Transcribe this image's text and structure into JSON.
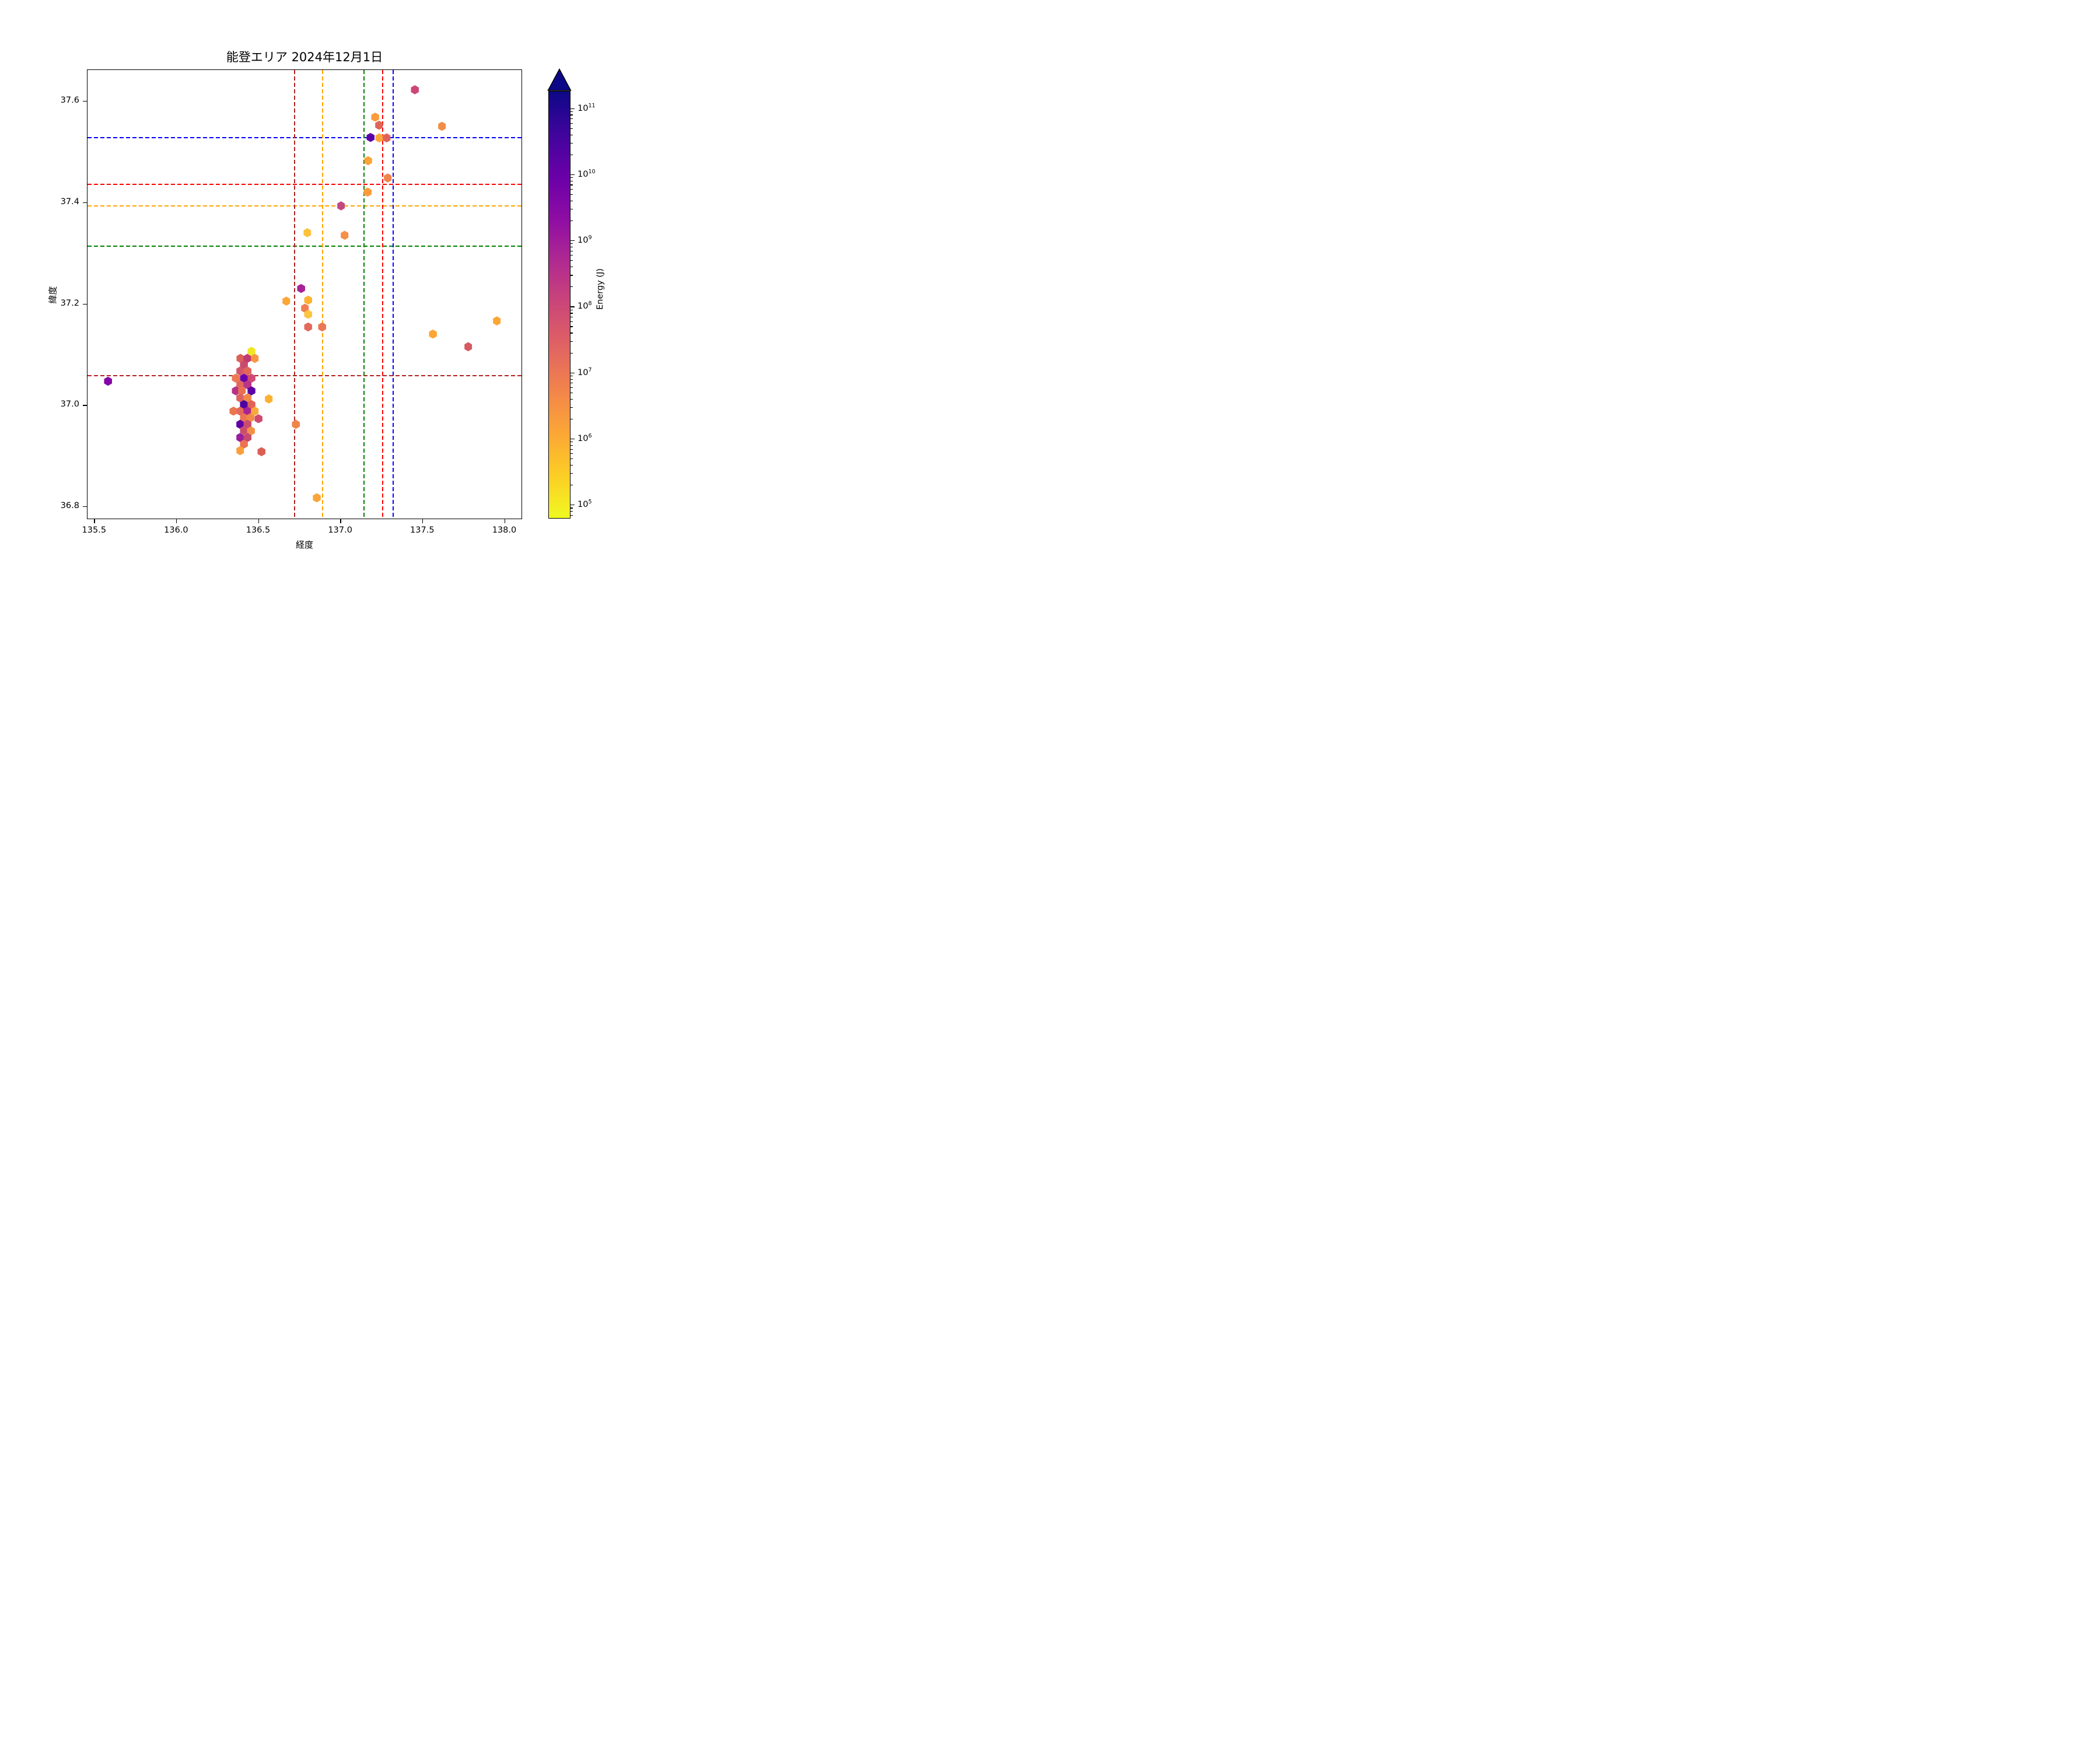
{
  "chart_data": {
    "type": "scatter",
    "marker": "hexagon",
    "title": "能登エリア 2024年12月1日",
    "xlabel": "経度",
    "ylabel": "緯度",
    "xlim": [
      135.46,
      138.105
    ],
    "ylim": [
      36.776,
      37.661
    ],
    "xticks": [
      135.5,
      136.0,
      136.5,
      137.0,
      137.5,
      138.0
    ],
    "xtick_labels": [
      "135.5",
      "136.0",
      "136.5",
      "137.0",
      "137.5",
      "138.0"
    ],
    "yticks": [
      36.8,
      37.0,
      37.2,
      37.4,
      37.6
    ],
    "ytick_labels": [
      "36.8",
      "37.0",
      "37.2",
      "37.4",
      "37.6"
    ],
    "grid": false,
    "ref_lines_horizontal": [
      {
        "name": "blue-dashed",
        "lat": 37.527,
        "color": "#0000ff"
      },
      {
        "name": "red-dashed",
        "lat": 37.435,
        "color": "#ff0000"
      },
      {
        "name": "orange-dashed",
        "lat": 37.393,
        "color": "#ffa500"
      },
      {
        "name": "green-dashed",
        "lat": 37.313,
        "color": "#008000"
      },
      {
        "name": "darkred-dashed",
        "lat": 37.058,
        "color": "#b22222"
      }
    ],
    "ref_lines_vertical": [
      {
        "name": "darkred-dashed",
        "lon": 136.723,
        "color": "#b22222"
      },
      {
        "name": "orange-dashed",
        "lon": 136.893,
        "color": "#ffa500"
      },
      {
        "name": "green-dashed",
        "lon": 137.145,
        "color": "#008000"
      },
      {
        "name": "red-dashed",
        "lon": 137.258,
        "color": "#ff0000"
      },
      {
        "name": "blue-dashed",
        "lon": 137.323,
        "color": "#0000ff"
      }
    ],
    "points": [
      {
        "lon": 135.585,
        "lat": 37.047,
        "color": "#8405a7",
        "log10_energy": 9.6
      },
      {
        "lon": 137.455,
        "lat": 37.622,
        "color": "#cc4778",
        "log10_energy": 8.0
      },
      {
        "lon": 137.213,
        "lat": 37.568,
        "color": "#fb9b3d",
        "log10_energy": 6.3
      },
      {
        "lon": 137.237,
        "lat": 37.552,
        "color": "#e06458",
        "log10_energy": 7.3
      },
      {
        "lon": 137.62,
        "lat": 37.55,
        "color": "#f18d44",
        "log10_energy": 6.6
      },
      {
        "lon": 137.185,
        "lat": 37.528,
        "color": "#5c01a6",
        "log10_energy": 10.3
      },
      {
        "lon": 137.238,
        "lat": 37.527,
        "color": "#fda63a",
        "log10_energy": 6.1
      },
      {
        "lon": 137.283,
        "lat": 37.527,
        "color": "#e06257",
        "log10_energy": 7.4
      },
      {
        "lon": 137.17,
        "lat": 37.482,
        "color": "#fba238",
        "log10_energy": 6.2
      },
      {
        "lon": 137.29,
        "lat": 37.448,
        "color": "#f1844b",
        "log10_energy": 6.7
      },
      {
        "lon": 137.167,
        "lat": 37.42,
        "color": "#fb9b3b",
        "log10_energy": 6.3
      },
      {
        "lon": 137.005,
        "lat": 37.393,
        "color": "#c2497f",
        "log10_energy": 8.2
      },
      {
        "lon": 137.027,
        "lat": 37.335,
        "color": "#f69048",
        "log10_energy": 6.5
      },
      {
        "lon": 136.8,
        "lat": 37.34,
        "color": "#fdc23c",
        "log10_energy": 5.7
      },
      {
        "lon": 136.762,
        "lat": 37.23,
        "color": "#a82296",
        "log10_energy": 8.8
      },
      {
        "lon": 136.672,
        "lat": 37.205,
        "color": "#fca636",
        "log10_energy": 6.1
      },
      {
        "lon": 136.805,
        "lat": 37.207,
        "color": "#fdb331",
        "log10_energy": 5.9
      },
      {
        "lon": 136.785,
        "lat": 37.191,
        "color": "#ef7f4f",
        "log10_energy": 6.9
      },
      {
        "lon": 136.805,
        "lat": 37.179,
        "color": "#fdc43f",
        "log10_energy": 5.6
      },
      {
        "lon": 136.805,
        "lat": 37.154,
        "color": "#e3695d",
        "log10_energy": 7.2
      },
      {
        "lon": 136.89,
        "lat": 37.154,
        "color": "#ec7754",
        "log10_energy": 7.0
      },
      {
        "lon": 137.565,
        "lat": 37.14,
        "color": "#fca636",
        "log10_energy": 6.1
      },
      {
        "lon": 137.78,
        "lat": 37.115,
        "color": "#d65a62",
        "log10_energy": 7.6
      },
      {
        "lon": 137.955,
        "lat": 37.166,
        "color": "#fca636",
        "log10_energy": 6.1
      },
      {
        "lon": 136.73,
        "lat": 36.962,
        "color": "#f0854a",
        "log10_energy": 6.7
      },
      {
        "lon": 136.565,
        "lat": 37.012,
        "color": "#fcb131",
        "log10_energy": 6.0
      },
      {
        "lon": 136.52,
        "lat": 36.908,
        "color": "#dc5f56",
        "log10_energy": 7.4
      },
      {
        "lon": 136.857,
        "lat": 36.817,
        "color": "#faa53b",
        "log10_energy": 6.1
      },
      {
        "lon": 136.459,
        "lat": 37.106,
        "color": "#f0e626",
        "log10_energy": 5.0
      },
      {
        "lon": 136.392,
        "lat": 37.092,
        "color": "#d96158",
        "log10_energy": 7.5
      },
      {
        "lon": 136.434,
        "lat": 37.092,
        "color": "#c03b6f",
        "log10_energy": 7.9
      },
      {
        "lon": 136.48,
        "lat": 37.092,
        "color": "#f89540",
        "log10_energy": 6.4
      },
      {
        "lon": 136.413,
        "lat": 37.079,
        "color": "#ca4a6e",
        "log10_energy": 7.8
      },
      {
        "lon": 136.39,
        "lat": 37.067,
        "color": "#d2556b",
        "log10_energy": 7.7
      },
      {
        "lon": 136.435,
        "lat": 37.067,
        "color": "#e2655a",
        "log10_energy": 7.3
      },
      {
        "lon": 136.364,
        "lat": 37.053,
        "color": "#ed7953",
        "log10_energy": 6.9
      },
      {
        "lon": 136.413,
        "lat": 37.053,
        "color": "#6a00a8",
        "log10_energy": 10.0
      },
      {
        "lon": 136.459,
        "lat": 37.053,
        "color": "#d14a72",
        "log10_energy": 7.9
      },
      {
        "lon": 136.39,
        "lat": 37.04,
        "color": "#e3685c",
        "log10_energy": 7.2
      },
      {
        "lon": 136.435,
        "lat": 37.04,
        "color": "#ba3488",
        "log10_energy": 8.5
      },
      {
        "lon": 136.364,
        "lat": 37.028,
        "color": "#b53289",
        "log10_energy": 8.6
      },
      {
        "lon": 136.401,
        "lat": 37.028,
        "color": "#ea7051",
        "log10_energy": 7.0
      },
      {
        "lon": 136.459,
        "lat": 37.028,
        "color": "#5c01a6",
        "log10_energy": 10.3
      },
      {
        "lon": 136.39,
        "lat": 37.014,
        "color": "#dd6260",
        "log10_energy": 7.4
      },
      {
        "lon": 136.435,
        "lat": 37.014,
        "color": "#f08849",
        "log10_energy": 6.6
      },
      {
        "lon": 136.413,
        "lat": 37.001,
        "color": "#4c02a1",
        "log10_energy": 10.6
      },
      {
        "lon": 136.459,
        "lat": 37.001,
        "color": "#e06258",
        "log10_energy": 7.4
      },
      {
        "lon": 136.35,
        "lat": 36.988,
        "color": "#e8764f",
        "log10_energy": 6.9
      },
      {
        "lon": 136.39,
        "lat": 36.988,
        "color": "#e3695c",
        "log10_energy": 7.2
      },
      {
        "lon": 136.434,
        "lat": 36.988,
        "color": "#aa2395",
        "log10_energy": 8.8
      },
      {
        "lon": 136.48,
        "lat": 36.988,
        "color": "#faa83b",
        "log10_energy": 6.1
      },
      {
        "lon": 136.413,
        "lat": 36.975,
        "color": "#ed7551",
        "log10_energy": 6.9
      },
      {
        "lon": 136.453,
        "lat": 36.975,
        "color": "#f08b46",
        "log10_energy": 6.5
      },
      {
        "lon": 136.502,
        "lat": 36.973,
        "color": "#d14a6e",
        "log10_energy": 7.9
      },
      {
        "lon": 136.39,
        "lat": 36.962,
        "color": "#5f01a5",
        "log10_energy": 10.2
      },
      {
        "lon": 136.435,
        "lat": 36.962,
        "color": "#ca4c6f",
        "log10_energy": 7.8
      },
      {
        "lon": 136.413,
        "lat": 36.95,
        "color": "#cb4d6d",
        "log10_energy": 7.8
      },
      {
        "lon": 136.456,
        "lat": 36.949,
        "color": "#f29146",
        "log10_energy": 6.4
      },
      {
        "lon": 136.39,
        "lat": 36.936,
        "color": "#9a1d9a",
        "log10_energy": 9.1
      },
      {
        "lon": 136.435,
        "lat": 36.936,
        "color": "#c74a70",
        "log10_energy": 7.9
      },
      {
        "lon": 136.413,
        "lat": 36.923,
        "color": "#ec7351",
        "log10_energy": 7.0
      },
      {
        "lon": 136.39,
        "lat": 36.91,
        "color": "#f9a03c",
        "log10_energy": 6.2
      }
    ],
    "colorbar": {
      "label": "Energy (J)",
      "scale": "log",
      "tick_exponents": [
        5,
        6,
        7,
        8,
        9,
        10,
        11
      ],
      "tick_base": "10",
      "log_top": 11.26,
      "log_bottom": 4.79,
      "extend": "max",
      "extend_color": "#0d0887",
      "gradient_top_to_bottom": [
        "#0d0887",
        "#41049d",
        "#6a00a8",
        "#8f0da4",
        "#b12a90",
        "#cc4778",
        "#e16462",
        "#f2844b",
        "#fca636",
        "#fcce25",
        "#f0f921"
      ]
    }
  }
}
